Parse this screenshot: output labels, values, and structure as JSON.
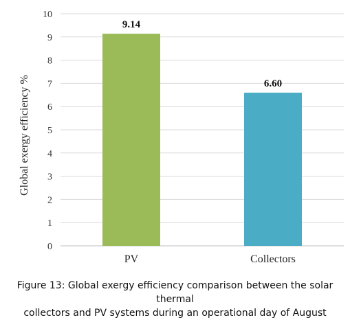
{
  "chart_data": {
    "type": "bar",
    "categories": [
      "PV",
      "Collectors"
    ],
    "values": [
      9.14,
      6.6
    ],
    "value_labels": [
      "9.14",
      "6.60"
    ],
    "bar_colors": [
      "#9bbb59",
      "#4bacc6"
    ],
    "title": "",
    "xlabel": "",
    "ylabel": "Global exergy efficiency  %",
    "ylim": [
      0,
      10
    ],
    "yticks": [
      "0",
      "1",
      "2",
      "3",
      "4",
      "5",
      "6",
      "7",
      "8",
      "9",
      "10"
    ],
    "grid": true,
    "legend": "none"
  },
  "caption": {
    "line1": "Figure 13: Global exergy efficiency comparison between the solar thermal",
    "line2": "collectors and PV systems during an operational day of August"
  }
}
